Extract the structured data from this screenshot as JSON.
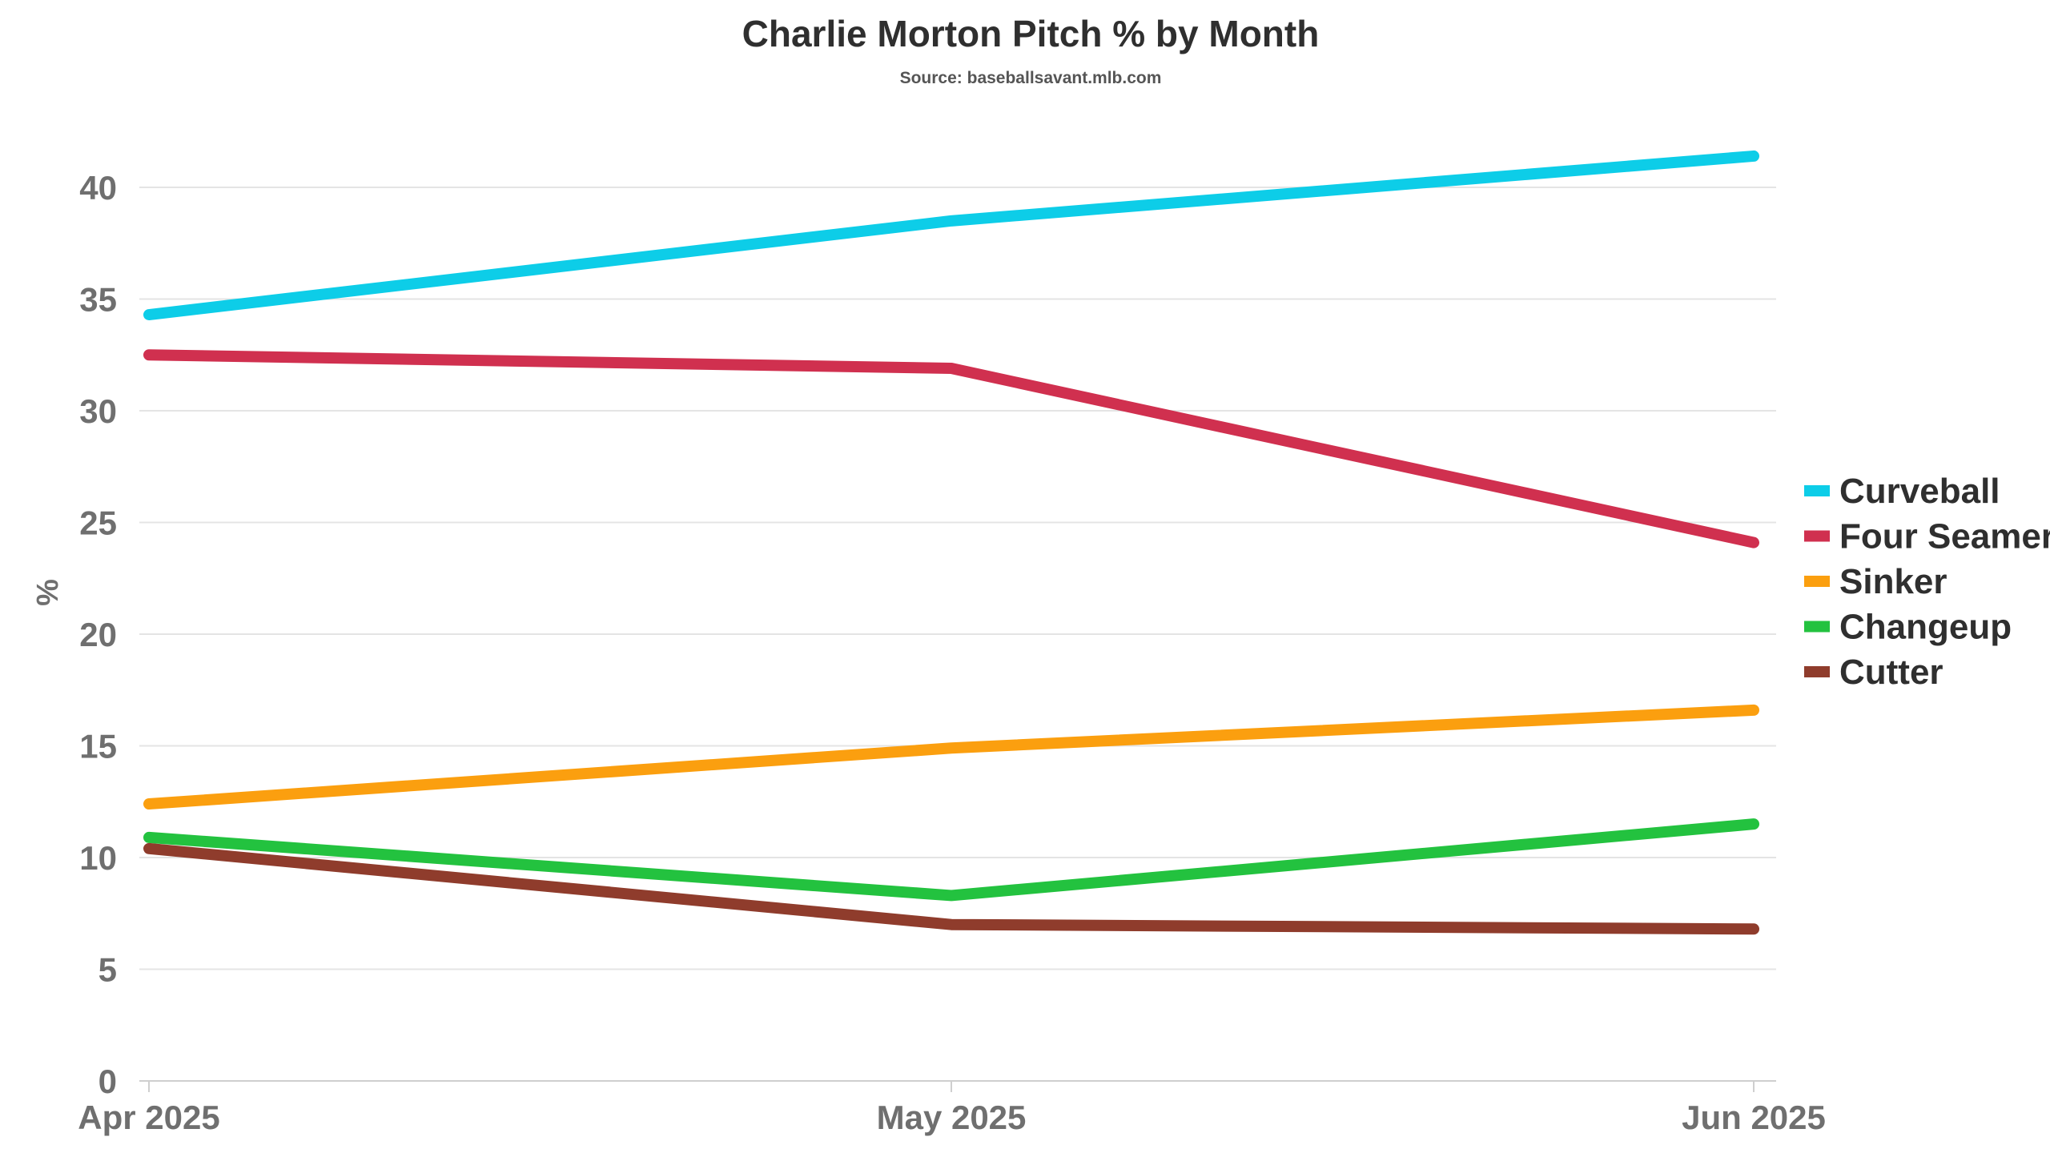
{
  "chart_data": {
    "type": "line",
    "title": "Charlie Morton Pitch % by Month",
    "subtitle": "Source: baseballsavant.mlb.com",
    "xlabel": "",
    "ylabel": "%",
    "categories": [
      "Apr 2025",
      "May 2025",
      "Jun 2025"
    ],
    "ylim": [
      0,
      43
    ],
    "yticks": [
      0,
      5,
      10,
      15,
      20,
      25,
      30,
      35,
      40
    ],
    "grid": "horizontal",
    "legend_position": "right",
    "series": [
      {
        "name": "Curveball",
        "color": "#0dcde8",
        "values": [
          34.3,
          38.5,
          41.4
        ]
      },
      {
        "name": "Four Seamer",
        "color": "#d0304f",
        "values": [
          32.5,
          31.9,
          24.1
        ]
      },
      {
        "name": "Sinker",
        "color": "#fb9f0f",
        "values": [
          12.4,
          14.9,
          16.6
        ]
      },
      {
        "name": "Changeup",
        "color": "#23c23f",
        "values": [
          10.9,
          8.3,
          11.5
        ]
      },
      {
        "name": "Cutter",
        "color": "#8f3c2c",
        "values": [
          10.4,
          7.0,
          6.8
        ]
      }
    ]
  }
}
